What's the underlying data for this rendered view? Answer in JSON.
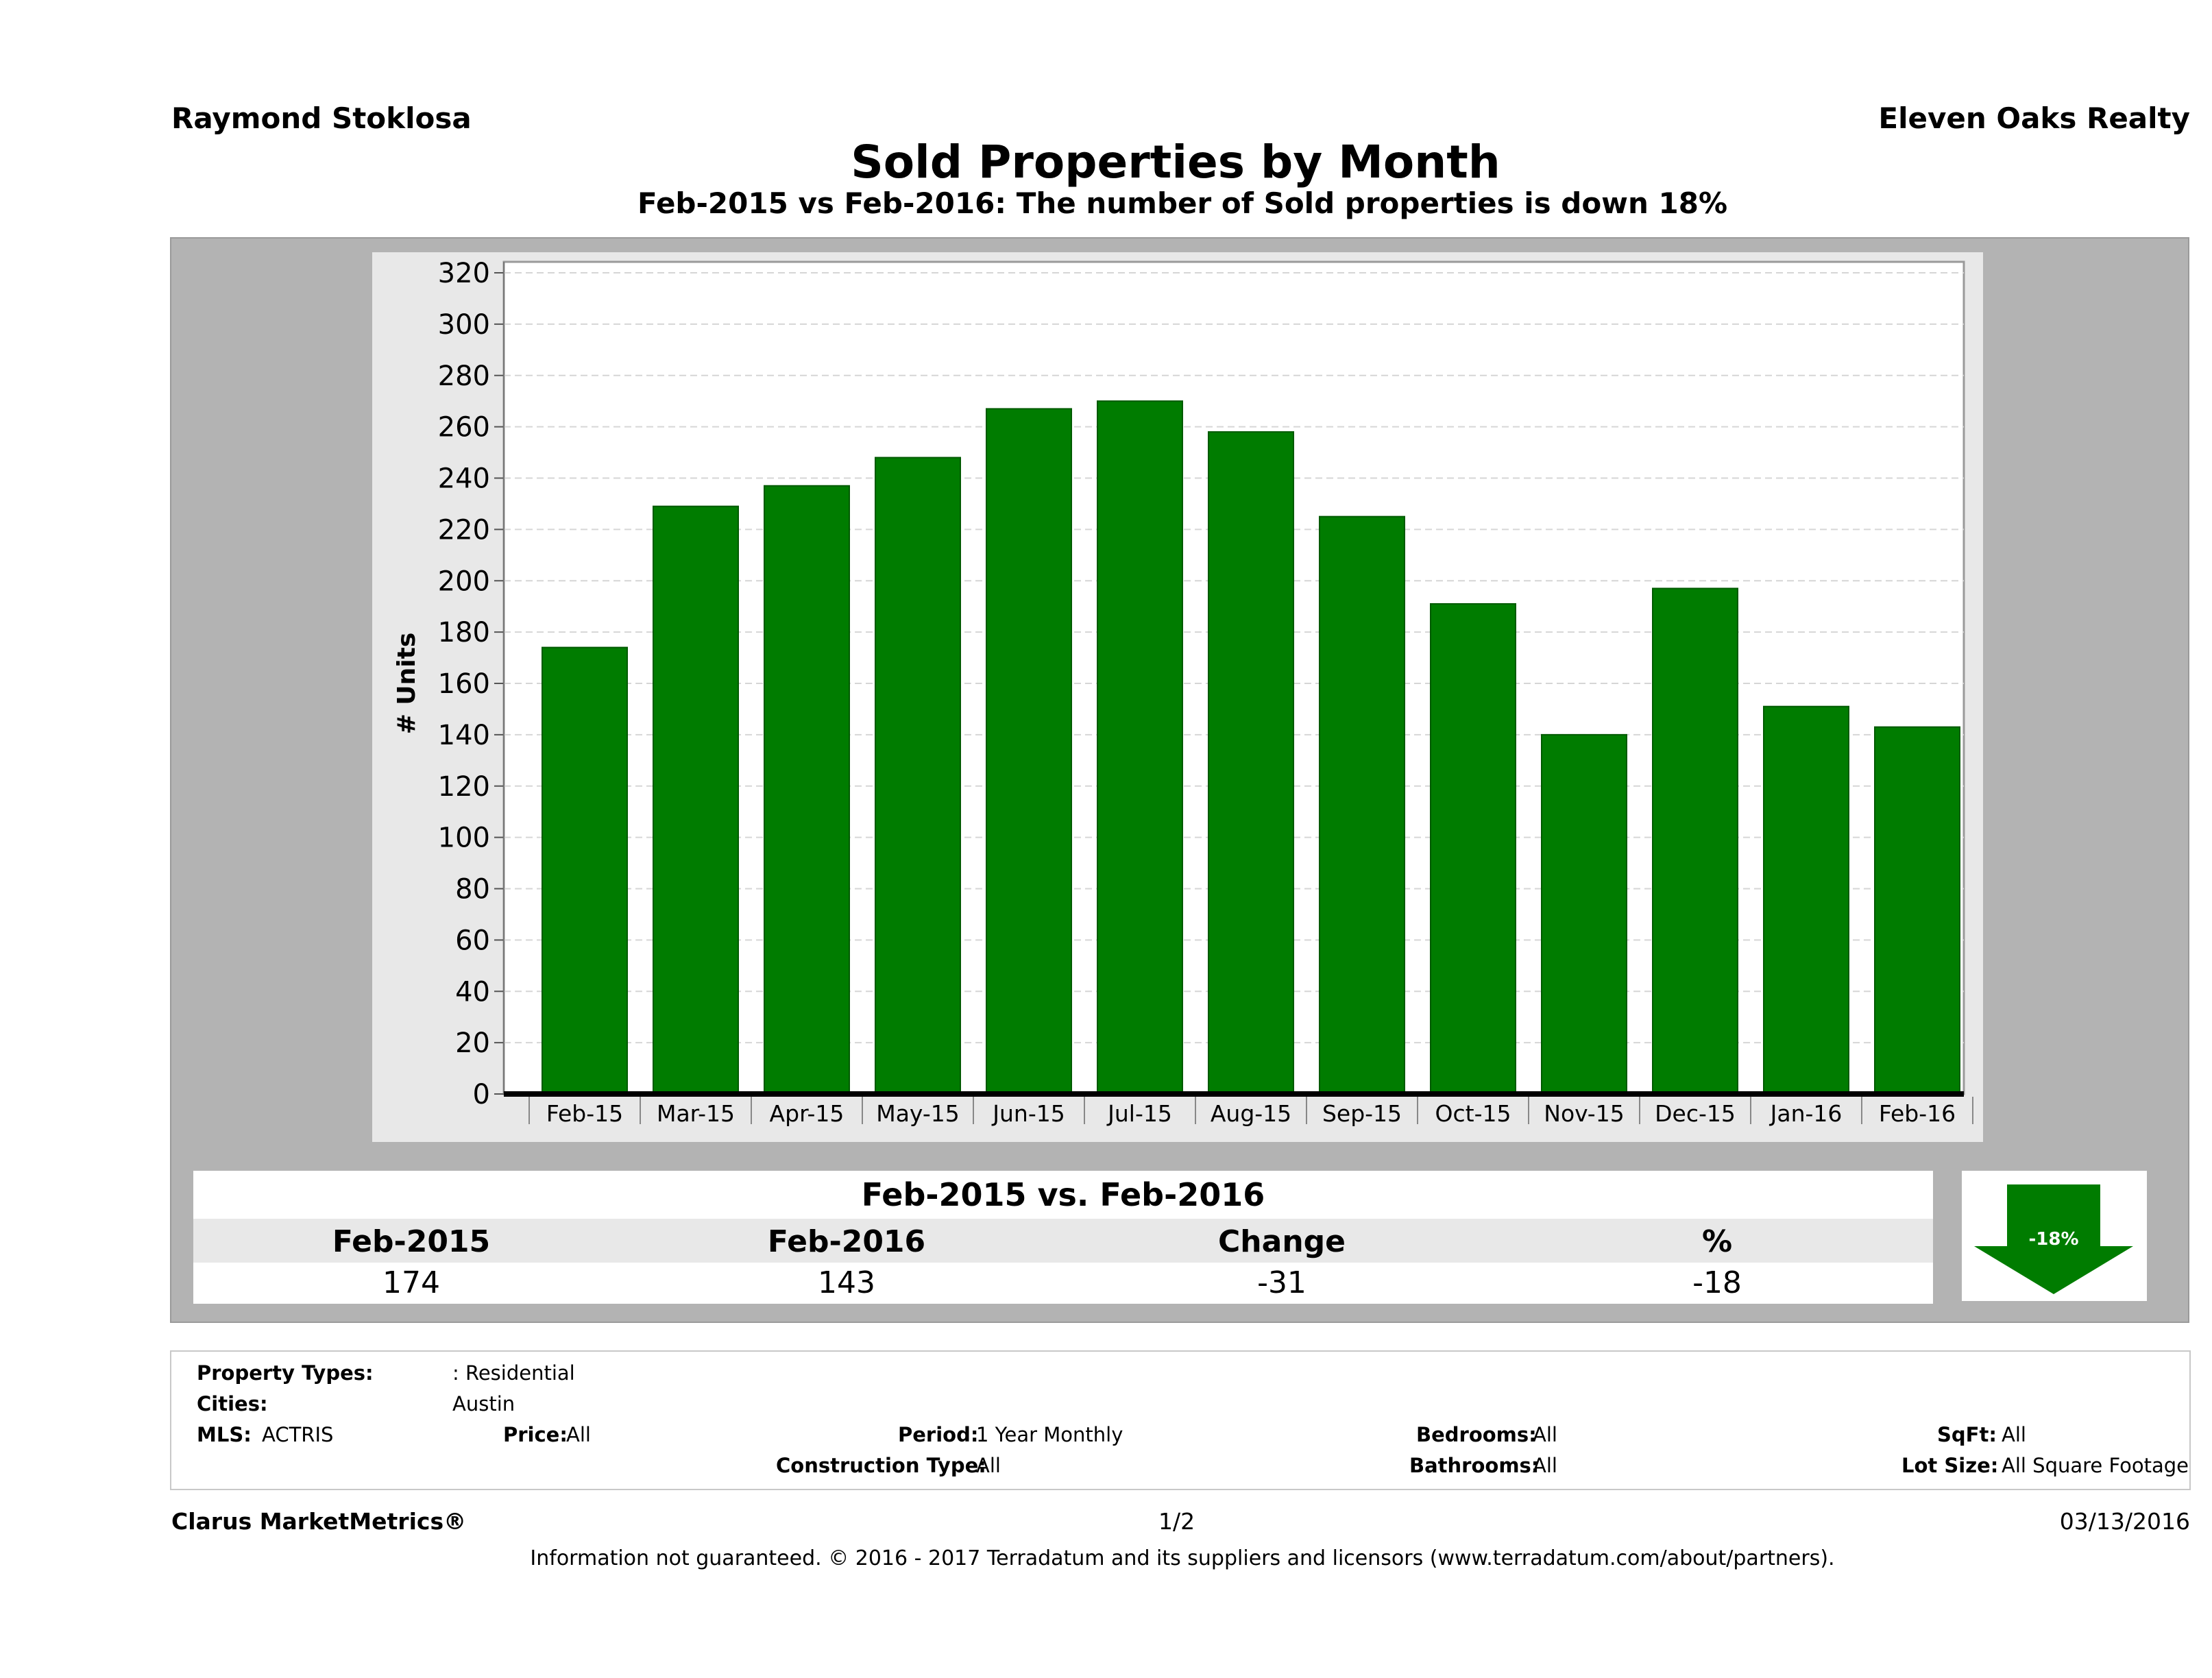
{
  "header": {
    "agent": "Raymond Stoklosa",
    "company": "Eleven Oaks Realty",
    "title": "Sold Properties by Month",
    "subtitle": "Feb-2015 vs Feb-2016: The number of Sold  properties is down 18%"
  },
  "chart_data": {
    "type": "bar",
    "categories": [
      "Feb-15",
      "Mar-15",
      "Apr-15",
      "May-15",
      "Jun-15",
      "Jul-15",
      "Aug-15",
      "Sep-15",
      "Oct-15",
      "Nov-15",
      "Dec-15",
      "Jan-16",
      "Feb-16"
    ],
    "values": [
      174,
      229,
      237,
      248,
      267,
      270,
      258,
      225,
      191,
      140,
      197,
      151,
      143
    ],
    "ylabel": "# Units",
    "ylim": [
      0,
      320
    ],
    "yticks": [
      0,
      20,
      40,
      60,
      80,
      100,
      120,
      140,
      160,
      180,
      200,
      220,
      240,
      260,
      280,
      300,
      320
    ],
    "grid": true,
    "bar_color": "#007c00"
  },
  "summary": {
    "title": "Feb-2015 vs. Feb-2016",
    "labels": [
      "Feb-2015",
      "Feb-2016",
      "Change",
      "%"
    ],
    "values": [
      "174",
      "143",
      "-31",
      "-18"
    ],
    "arrow_label": "-18%",
    "arrow_icon": "down-arrow-icon",
    "arrow_color": "#007c00"
  },
  "criteria": {
    "property_types_label": "Property Types:",
    "property_types_value": ": Residential",
    "cities_label": "Cities:",
    "cities_value": "Austin",
    "mls_label": "MLS:",
    "mls_value": "ACTRIS",
    "price_label": "Price:",
    "price_value": "All",
    "period_label": "Period:",
    "period_value": "1 Year Monthly",
    "construction_label": "Construction Type:",
    "construction_value": "All",
    "bedrooms_label": "Bedrooms:",
    "bedrooms_value": "All",
    "bathrooms_label": "Bathrooms:",
    "bathrooms_value": "All",
    "sqft_label": "SqFt:",
    "sqft_value": "All",
    "lot_label": "Lot Size:",
    "lot_value": "All Square Footage"
  },
  "footer": {
    "brand": "Clarus MarketMetrics®",
    "page": "1/2",
    "date": "03/13/2016",
    "disclaimer": "Information not guaranteed. © 2016 - 2017 Terradatum and its suppliers and licensors (www.terradatum.com/about/partners)."
  }
}
